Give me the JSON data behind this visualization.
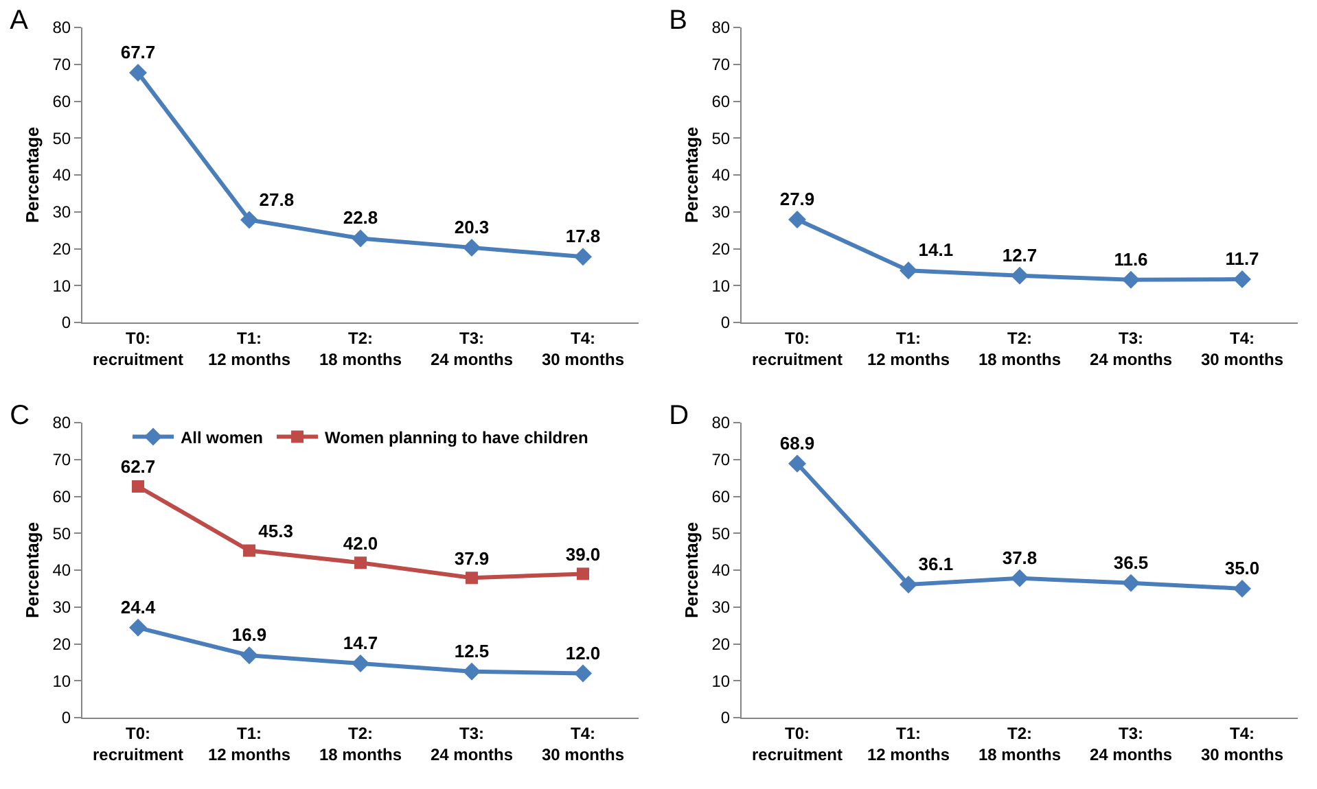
{
  "chart_data": [
    {
      "type": "line",
      "title": "A",
      "ylabel": "Percentage",
      "categories": [
        "T0: recruitment",
        "T1: 12 months",
        "T2: 18 months",
        "T3: 24 months",
        "T4: 30 months"
      ],
      "ylim": [
        0,
        80
      ],
      "yticks": [
        0,
        10,
        20,
        30,
        40,
        50,
        60,
        70,
        80
      ],
      "grid": false,
      "legend": false,
      "marker": "diamond",
      "series": [
        {
          "color": "#4a7ebb",
          "values": [
            67.7,
            27.8,
            22.8,
            20.3,
            17.8
          ],
          "value_labels": [
            "67.7",
            "27.8",
            "22.8",
            "20.3",
            "17.8"
          ]
        }
      ]
    },
    {
      "type": "line",
      "title": "B",
      "ylabel": "Percentage",
      "categories": [
        "T0: recruitment",
        "T1: 12 months",
        "T2: 18 months",
        "T3: 24 months",
        "T4: 30 months"
      ],
      "ylim": [
        0,
        80
      ],
      "yticks": [
        0,
        10,
        20,
        30,
        40,
        50,
        60,
        70,
        80
      ],
      "grid": false,
      "legend": false,
      "marker": "diamond",
      "series": [
        {
          "color": "#4a7ebb",
          "values": [
            27.9,
            14.1,
            12.7,
            11.6,
            11.7
          ],
          "value_labels": [
            "27.9",
            "14.1",
            "12.7",
            "11.6",
            "11.7"
          ]
        }
      ]
    },
    {
      "type": "line",
      "title": "C",
      "ylabel": "Percentage",
      "categories": [
        "T0: recruitment",
        "T1: 12 months",
        "T2: 18 months",
        "T3: 24 months",
        "T4: 30 months"
      ],
      "ylim": [
        0,
        80
      ],
      "yticks": [
        0,
        10,
        20,
        30,
        40,
        50,
        60,
        70,
        80
      ],
      "grid": false,
      "legend": "top",
      "series": [
        {
          "name": "All women",
          "color": "#4a7ebb",
          "marker": "diamond",
          "values": [
            24.4,
            16.9,
            14.7,
            12.5,
            12.0
          ],
          "value_labels": [
            "24.4",
            "16.9",
            "14.7",
            "12.5",
            "12.0"
          ]
        },
        {
          "name": "Women planning to have children",
          "color": "#be4b48",
          "marker": "square",
          "values": [
            62.7,
            45.3,
            42.0,
            37.9,
            39.0
          ],
          "value_labels": [
            "62.7",
            "45.3",
            "42.0",
            "37.9",
            "39.0"
          ]
        }
      ]
    },
    {
      "type": "line",
      "title": "D",
      "ylabel": "Percentage",
      "categories": [
        "T0: recruitment",
        "T1: 12 months",
        "T2: 18 months",
        "T3: 24 months",
        "T4: 30 months"
      ],
      "ylim": [
        0,
        80
      ],
      "yticks": [
        0,
        10,
        20,
        30,
        40,
        50,
        60,
        70,
        80
      ],
      "grid": false,
      "legend": false,
      "marker": "diamond",
      "series": [
        {
          "color": "#4a7ebb",
          "values": [
            68.9,
            36.1,
            37.8,
            36.5,
            35.0
          ],
          "value_labels": [
            "68.9",
            "36.1",
            "37.8",
            "36.5",
            "35.0"
          ]
        }
      ]
    }
  ]
}
